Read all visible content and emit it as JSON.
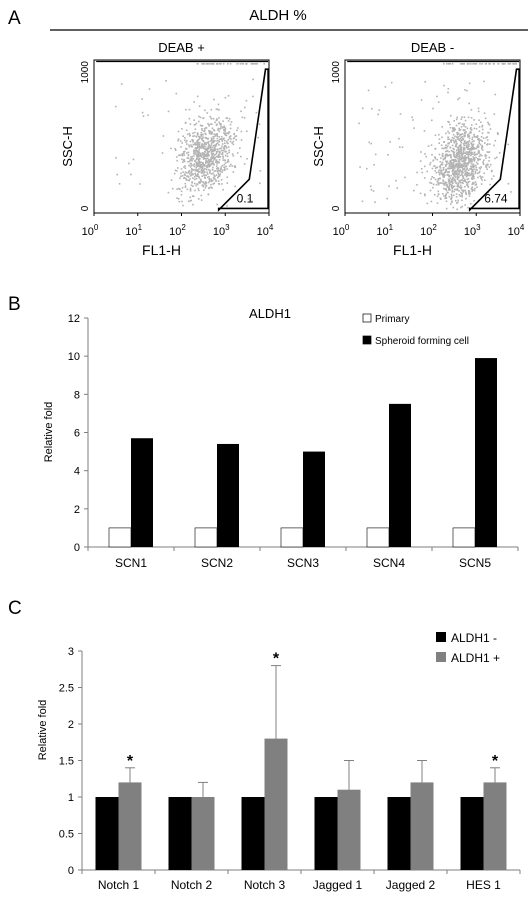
{
  "panel_a": {
    "letter": "A",
    "header": "ALDH %",
    "plots": [
      {
        "title": "DEAB +",
        "gate_value": "0.1",
        "cloud_cx": 2.55,
        "cloud_cy": 0.38,
        "n": 900
      },
      {
        "title": "DEAB -",
        "gate_value": "6.74",
        "cloud_cx": 2.6,
        "cloud_cy": 0.33,
        "n": 1100
      }
    ],
    "xlabel": "FL1-H",
    "ylabel": "SSC-H",
    "y_ticks": [
      "0",
      "1000"
    ],
    "x_ticks": [
      {
        "base": "10",
        "exp": "0"
      },
      {
        "base": "10",
        "exp": "1"
      },
      {
        "base": "10",
        "exp": "2"
      },
      {
        "base": "10",
        "exp": "3"
      },
      {
        "base": "10",
        "exp": "4"
      }
    ],
    "dot_color": "#b3b3b3"
  },
  "chart_data": [
    {
      "type": "bar",
      "letter": "B",
      "title": "ALDH1",
      "ylabel": "Relative fold",
      "xlabel": "",
      "categories": [
        "SCN1",
        "SCN2",
        "SCN3",
        "SCN4",
        "SCN5"
      ],
      "ylim": [
        0,
        12
      ],
      "yticks": [
        0,
        2,
        4,
        6,
        8,
        10,
        12
      ],
      "series": [
        {
          "name": "Primary",
          "values": [
            1,
            1,
            1,
            1,
            1
          ],
          "color": "#ffffff"
        },
        {
          "name": "Spheroid forming cell",
          "values": [
            5.7,
            5.4,
            5.0,
            7.5,
            9.9
          ],
          "color": "#000000"
        }
      ],
      "grid": false,
      "legend": "top-right"
    },
    {
      "type": "bar",
      "letter": "C",
      "title": "",
      "ylabel": "Relative fold",
      "xlabel": "",
      "categories": [
        "Notch 1",
        "Notch 2",
        "Notch 3",
        "Jagged 1",
        "Jagged 2",
        "HES 1"
      ],
      "ylim": [
        0,
        3
      ],
      "yticks": [
        "0",
        "0.5",
        "1",
        "1.5",
        "2",
        "2.5",
        "3"
      ],
      "series": [
        {
          "name": "ALDH1 -",
          "values": [
            1,
            1,
            1,
            1,
            1,
            1
          ],
          "color": "#000000"
        },
        {
          "name": "ALDH1 +",
          "values": [
            1.2,
            1.0,
            1.8,
            1.1,
            1.2,
            1.2
          ],
          "errors": [
            0.2,
            0.2,
            1.0,
            0.4,
            0.3,
            0.2
          ],
          "color": "#808080"
        }
      ],
      "significance": [
        "*",
        "",
        "*",
        "",
        "",
        "*"
      ],
      "grid": false,
      "legend": "top-right"
    }
  ]
}
